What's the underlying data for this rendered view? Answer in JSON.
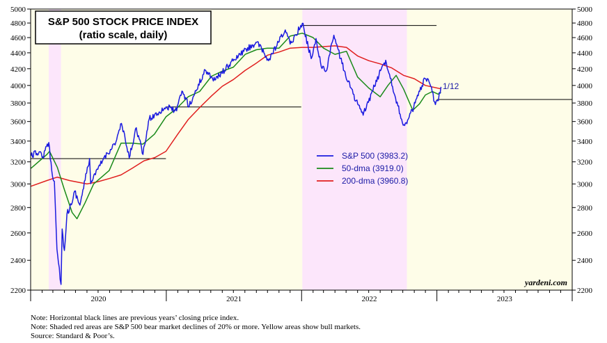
{
  "chart_data": {
    "type": "line",
    "title": "S&P 500 STOCK PRICE INDEX",
    "subtitle": "(ratio scale, daily)",
    "y_axis": {
      "scale": "log",
      "range": [
        2200,
        5000
      ],
      "ticks": [
        2200,
        2400,
        2600,
        2800,
        3000,
        3200,
        3400,
        3600,
        3800,
        4000,
        4200,
        4400,
        4600,
        4800,
        5000
      ]
    },
    "x_axis": {
      "range": [
        "2020-01-01",
        "2024-01-01"
      ],
      "year_labels": [
        "2020",
        "2021",
        "2022",
        "2023"
      ]
    },
    "grid": false,
    "legend_position": "center",
    "series": [
      {
        "name": "S&P 500 (3983.2)",
        "color": "#1a1adf",
        "points": [
          [
            "2020-01-02",
            3258
          ],
          [
            "2020-01-24",
            3295
          ],
          [
            "2020-02-03",
            3248
          ],
          [
            "2020-02-19",
            3386
          ],
          [
            "2020-02-27",
            3116
          ],
          [
            "2020-03-05",
            3023
          ],
          [
            "2020-03-12",
            2480
          ],
          [
            "2020-03-16",
            2386
          ],
          [
            "2020-03-23",
            2237
          ],
          [
            "2020-03-26",
            2630
          ],
          [
            "2020-04-01",
            2470
          ],
          [
            "2020-04-08",
            2750
          ],
          [
            "2020-04-20",
            2823
          ],
          [
            "2020-04-29",
            2939
          ],
          [
            "2020-05-13",
            2820
          ],
          [
            "2020-06-08",
            3232
          ],
          [
            "2020-06-11",
            3002
          ],
          [
            "2020-07-15",
            3227
          ],
          [
            "2020-08-18",
            3390
          ],
          [
            "2020-09-02",
            3580
          ],
          [
            "2020-09-23",
            3237
          ],
          [
            "2020-10-12",
            3535
          ],
          [
            "2020-10-30",
            3270
          ],
          [
            "2020-11-16",
            3627
          ],
          [
            "2020-12-31",
            3756
          ],
          [
            "2021-01-29",
            3714
          ],
          [
            "2021-02-12",
            3934
          ],
          [
            "2021-03-04",
            3768
          ],
          [
            "2021-04-16",
            4185
          ],
          [
            "2021-05-12",
            4063
          ],
          [
            "2021-06-30",
            4297
          ],
          [
            "2021-07-29",
            4419
          ],
          [
            "2021-09-02",
            4537
          ],
          [
            "2021-10-04",
            4300
          ],
          [
            "2021-11-18",
            4704
          ],
          [
            "2021-12-01",
            4513
          ],
          [
            "2022-01-03",
            4796
          ],
          [
            "2022-01-27",
            4326
          ],
          [
            "2022-02-09",
            4587
          ],
          [
            "2022-02-23",
            4225
          ],
          [
            "2022-03-08",
            4170
          ],
          [
            "2022-03-29",
            4632
          ],
          [
            "2022-04-26",
            4175
          ],
          [
            "2022-05-20",
            3901
          ],
          [
            "2022-06-16",
            3667
          ],
          [
            "2022-07-29",
            4130
          ],
          [
            "2022-08-16",
            4305
          ],
          [
            "2022-09-30",
            3586
          ],
          [
            "2022-10-12",
            3577
          ],
          [
            "2022-11-30",
            4080
          ],
          [
            "2022-12-13",
            4019
          ],
          [
            "2022-12-28",
            3783
          ],
          [
            "2023-01-03",
            3824
          ],
          [
            "2023-01-12",
            3983.2
          ]
        ]
      },
      {
        "name": "50-dma (3919.0)",
        "color": "#1a8a1a",
        "points": [
          [
            "2020-01-02",
            3140
          ],
          [
            "2020-02-14",
            3270
          ],
          [
            "2020-02-21",
            3300
          ],
          [
            "2020-03-13",
            3150
          ],
          [
            "2020-04-01",
            2950
          ],
          [
            "2020-04-22",
            2760
          ],
          [
            "2020-05-05",
            2710
          ],
          [
            "2020-05-27",
            2840
          ],
          [
            "2020-06-19",
            3000
          ],
          [
            "2020-07-31",
            3120
          ],
          [
            "2020-09-01",
            3380
          ],
          [
            "2020-09-30",
            3380
          ],
          [
            "2020-10-30",
            3370
          ],
          [
            "2020-11-30",
            3470
          ],
          [
            "2020-12-31",
            3650
          ],
          [
            "2021-01-29",
            3740
          ],
          [
            "2021-03-01",
            3870
          ],
          [
            "2021-04-01",
            3930
          ],
          [
            "2021-05-03",
            4110
          ],
          [
            "2021-06-01",
            4170
          ],
          [
            "2021-07-01",
            4220
          ],
          [
            "2021-08-02",
            4380
          ],
          [
            "2021-09-01",
            4440
          ],
          [
            "2021-10-01",
            4460
          ],
          [
            "2021-11-01",
            4460
          ],
          [
            "2021-12-01",
            4620
          ],
          [
            "2022-01-03",
            4660
          ],
          [
            "2022-02-01",
            4600
          ],
          [
            "2022-03-01",
            4460
          ],
          [
            "2022-04-01",
            4380
          ],
          [
            "2022-05-02",
            4420
          ],
          [
            "2022-06-01",
            4100
          ],
          [
            "2022-07-01",
            3970
          ],
          [
            "2022-08-01",
            3870
          ],
          [
            "2022-08-22",
            4000
          ],
          [
            "2022-09-13",
            4120
          ],
          [
            "2022-10-03",
            3960
          ],
          [
            "2022-10-28",
            3720
          ],
          [
            "2022-11-15",
            3790
          ],
          [
            "2022-12-01",
            3890
          ],
          [
            "2022-12-20",
            3930
          ],
          [
            "2023-01-04",
            3900
          ],
          [
            "2023-01-12",
            3919
          ]
        ]
      },
      {
        "name": "200-dma (3960.8)",
        "color": "#e01e1e",
        "points": [
          [
            "2020-01-02",
            2980
          ],
          [
            "2020-02-14",
            3030
          ],
          [
            "2020-03-13",
            3060
          ],
          [
            "2020-04-15",
            3030
          ],
          [
            "2020-06-01",
            3000
          ],
          [
            "2020-07-01",
            3020
          ],
          [
            "2020-08-03",
            3050
          ],
          [
            "2020-09-01",
            3080
          ],
          [
            "2020-10-01",
            3140
          ],
          [
            "2020-11-02",
            3210
          ],
          [
            "2020-12-01",
            3240
          ],
          [
            "2020-12-31",
            3300
          ],
          [
            "2021-02-01",
            3470
          ],
          [
            "2021-03-01",
            3620
          ],
          [
            "2021-04-01",
            3750
          ],
          [
            "2021-05-03",
            3880
          ],
          [
            "2021-06-01",
            3990
          ],
          [
            "2021-07-01",
            4070
          ],
          [
            "2021-08-02",
            4180
          ],
          [
            "2021-09-01",
            4270
          ],
          [
            "2021-10-01",
            4370
          ],
          [
            "2021-11-01",
            4410
          ],
          [
            "2021-12-01",
            4460
          ],
          [
            "2022-01-03",
            4470
          ],
          [
            "2022-02-01",
            4470
          ],
          [
            "2022-03-01",
            4480
          ],
          [
            "2022-04-01",
            4490
          ],
          [
            "2022-05-02",
            4470
          ],
          [
            "2022-06-01",
            4360
          ],
          [
            "2022-07-01",
            4300
          ],
          [
            "2022-08-01",
            4260
          ],
          [
            "2022-09-01",
            4210
          ],
          [
            "2022-10-03",
            4120
          ],
          [
            "2022-11-01",
            4080
          ],
          [
            "2022-12-01",
            4000
          ],
          [
            "2023-01-12",
            3960.8
          ]
        ]
      }
    ],
    "reference_lines": [
      {
        "from": "2020-01-01",
        "to": "2020-12-31",
        "value": 3230
      },
      {
        "from": "2021-01-01",
        "to": "2021-12-31",
        "value": 3756
      },
      {
        "from": "2022-01-01",
        "to": "2022-12-31",
        "value": 4766
      },
      {
        "from": "2023-01-01",
        "to": "2023-12-31",
        "value": 3839
      }
    ],
    "shaded_periods": [
      {
        "type": "bull",
        "from": "2020-01-01",
        "to": "2020-02-19",
        "color": "#fefde8"
      },
      {
        "type": "bear",
        "from": "2020-02-19",
        "to": "2020-03-23",
        "color": "#fce6fb"
      },
      {
        "type": "bull",
        "from": "2020-03-23",
        "to": "2022-01-03",
        "color": "#fefde8"
      },
      {
        "type": "bear",
        "from": "2022-01-03",
        "to": "2022-10-12",
        "color": "#fce6fb"
      },
      {
        "type": "bull",
        "from": "2022-10-12",
        "to": "2024-01-01",
        "color": "#fefde8"
      }
    ],
    "last_value_label": "1/12"
  },
  "watermark": "yardeni.com",
  "notes": [
    "Note: Horizontal black lines are previous years’ closing price index.",
    "Note: Shaded red areas are S&P 500 bear market declines of 20% or more. Yellow areas show bull markets.",
    "Source: Standard & Poor’s."
  ]
}
